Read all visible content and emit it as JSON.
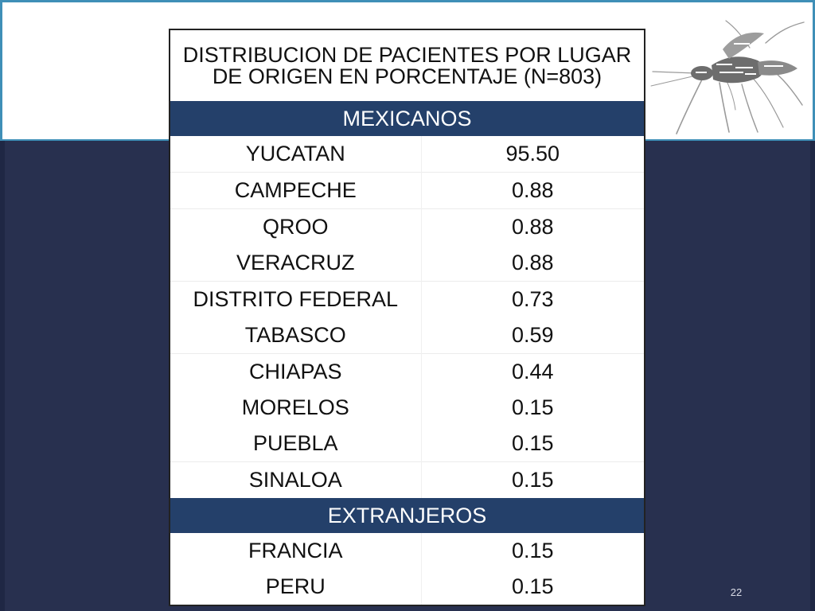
{
  "table": {
    "title_line1": "DISTRIBUCION DE PACIENTES POR LUGAR",
    "title_line2": "DE ORIGEN EN PORCENTAJE (N=803)",
    "sections": [
      {
        "label": "MEXICANOS",
        "rows": [
          {
            "state": "YUCATAN",
            "value": "95.50"
          },
          {
            "state": "CAMPECHE",
            "value": "0.88"
          },
          {
            "state": "QROO",
            "value": "0.88"
          },
          {
            "state": "VERACRUZ",
            "value": "0.88"
          },
          {
            "state": "DISTRITO FEDERAL",
            "value": "0.73"
          },
          {
            "state": "TABASCO",
            "value": "0.59"
          },
          {
            "state": "CHIAPAS",
            "value": "0.44"
          },
          {
            "state": "MORELOS",
            "value": "0.15"
          },
          {
            "state": "PUEBLA",
            "value": "0.15"
          },
          {
            "state": "SINALOA",
            "value": "0.15"
          }
        ]
      },
      {
        "label": "EXTRANJEROS",
        "rows": [
          {
            "state": "FRANCIA",
            "value": "0.15"
          },
          {
            "state": "PERU",
            "value": "0.15"
          }
        ]
      }
    ]
  },
  "slide_number": "22",
  "colors": {
    "slide_background": "#28304f",
    "top_band": "#ffffff",
    "top_border": "#3f8fb7",
    "section_header": "#24406a"
  },
  "images": {
    "decoration": "mosquito-word-cloud-icon"
  }
}
